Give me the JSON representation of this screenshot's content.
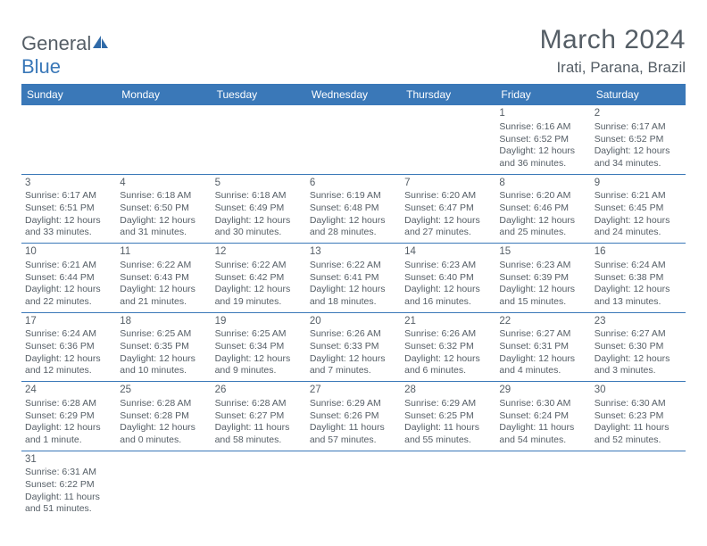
{
  "logo": {
    "text_general": "General",
    "text_blue": "Blue"
  },
  "title": "March 2024",
  "location": "Irati, Parana, Brazil",
  "colors": {
    "accent": "#3a78b8",
    "text": "#555e66",
    "bg": "#ffffff"
  },
  "weekdays": [
    "Sunday",
    "Monday",
    "Tuesday",
    "Wednesday",
    "Thursday",
    "Friday",
    "Saturday"
  ],
  "weeks": [
    [
      null,
      null,
      null,
      null,
      null,
      {
        "d": "1",
        "sr": "Sunrise: 6:16 AM",
        "ss": "Sunset: 6:52 PM",
        "dl1": "Daylight: 12 hours",
        "dl2": "and 36 minutes."
      },
      {
        "d": "2",
        "sr": "Sunrise: 6:17 AM",
        "ss": "Sunset: 6:52 PM",
        "dl1": "Daylight: 12 hours",
        "dl2": "and 34 minutes."
      }
    ],
    [
      {
        "d": "3",
        "sr": "Sunrise: 6:17 AM",
        "ss": "Sunset: 6:51 PM",
        "dl1": "Daylight: 12 hours",
        "dl2": "and 33 minutes."
      },
      {
        "d": "4",
        "sr": "Sunrise: 6:18 AM",
        "ss": "Sunset: 6:50 PM",
        "dl1": "Daylight: 12 hours",
        "dl2": "and 31 minutes."
      },
      {
        "d": "5",
        "sr": "Sunrise: 6:18 AM",
        "ss": "Sunset: 6:49 PM",
        "dl1": "Daylight: 12 hours",
        "dl2": "and 30 minutes."
      },
      {
        "d": "6",
        "sr": "Sunrise: 6:19 AM",
        "ss": "Sunset: 6:48 PM",
        "dl1": "Daylight: 12 hours",
        "dl2": "and 28 minutes."
      },
      {
        "d": "7",
        "sr": "Sunrise: 6:20 AM",
        "ss": "Sunset: 6:47 PM",
        "dl1": "Daylight: 12 hours",
        "dl2": "and 27 minutes."
      },
      {
        "d": "8",
        "sr": "Sunrise: 6:20 AM",
        "ss": "Sunset: 6:46 PM",
        "dl1": "Daylight: 12 hours",
        "dl2": "and 25 minutes."
      },
      {
        "d": "9",
        "sr": "Sunrise: 6:21 AM",
        "ss": "Sunset: 6:45 PM",
        "dl1": "Daylight: 12 hours",
        "dl2": "and 24 minutes."
      }
    ],
    [
      {
        "d": "10",
        "sr": "Sunrise: 6:21 AM",
        "ss": "Sunset: 6:44 PM",
        "dl1": "Daylight: 12 hours",
        "dl2": "and 22 minutes."
      },
      {
        "d": "11",
        "sr": "Sunrise: 6:22 AM",
        "ss": "Sunset: 6:43 PM",
        "dl1": "Daylight: 12 hours",
        "dl2": "and 21 minutes."
      },
      {
        "d": "12",
        "sr": "Sunrise: 6:22 AM",
        "ss": "Sunset: 6:42 PM",
        "dl1": "Daylight: 12 hours",
        "dl2": "and 19 minutes."
      },
      {
        "d": "13",
        "sr": "Sunrise: 6:22 AM",
        "ss": "Sunset: 6:41 PM",
        "dl1": "Daylight: 12 hours",
        "dl2": "and 18 minutes."
      },
      {
        "d": "14",
        "sr": "Sunrise: 6:23 AM",
        "ss": "Sunset: 6:40 PM",
        "dl1": "Daylight: 12 hours",
        "dl2": "and 16 minutes."
      },
      {
        "d": "15",
        "sr": "Sunrise: 6:23 AM",
        "ss": "Sunset: 6:39 PM",
        "dl1": "Daylight: 12 hours",
        "dl2": "and 15 minutes."
      },
      {
        "d": "16",
        "sr": "Sunrise: 6:24 AM",
        "ss": "Sunset: 6:38 PM",
        "dl1": "Daylight: 12 hours",
        "dl2": "and 13 minutes."
      }
    ],
    [
      {
        "d": "17",
        "sr": "Sunrise: 6:24 AM",
        "ss": "Sunset: 6:36 PM",
        "dl1": "Daylight: 12 hours",
        "dl2": "and 12 minutes."
      },
      {
        "d": "18",
        "sr": "Sunrise: 6:25 AM",
        "ss": "Sunset: 6:35 PM",
        "dl1": "Daylight: 12 hours",
        "dl2": "and 10 minutes."
      },
      {
        "d": "19",
        "sr": "Sunrise: 6:25 AM",
        "ss": "Sunset: 6:34 PM",
        "dl1": "Daylight: 12 hours",
        "dl2": "and 9 minutes."
      },
      {
        "d": "20",
        "sr": "Sunrise: 6:26 AM",
        "ss": "Sunset: 6:33 PM",
        "dl1": "Daylight: 12 hours",
        "dl2": "and 7 minutes."
      },
      {
        "d": "21",
        "sr": "Sunrise: 6:26 AM",
        "ss": "Sunset: 6:32 PM",
        "dl1": "Daylight: 12 hours",
        "dl2": "and 6 minutes."
      },
      {
        "d": "22",
        "sr": "Sunrise: 6:27 AM",
        "ss": "Sunset: 6:31 PM",
        "dl1": "Daylight: 12 hours",
        "dl2": "and 4 minutes."
      },
      {
        "d": "23",
        "sr": "Sunrise: 6:27 AM",
        "ss": "Sunset: 6:30 PM",
        "dl1": "Daylight: 12 hours",
        "dl2": "and 3 minutes."
      }
    ],
    [
      {
        "d": "24",
        "sr": "Sunrise: 6:28 AM",
        "ss": "Sunset: 6:29 PM",
        "dl1": "Daylight: 12 hours",
        "dl2": "and 1 minute."
      },
      {
        "d": "25",
        "sr": "Sunrise: 6:28 AM",
        "ss": "Sunset: 6:28 PM",
        "dl1": "Daylight: 12 hours",
        "dl2": "and 0 minutes."
      },
      {
        "d": "26",
        "sr": "Sunrise: 6:28 AM",
        "ss": "Sunset: 6:27 PM",
        "dl1": "Daylight: 11 hours",
        "dl2": "and 58 minutes."
      },
      {
        "d": "27",
        "sr": "Sunrise: 6:29 AM",
        "ss": "Sunset: 6:26 PM",
        "dl1": "Daylight: 11 hours",
        "dl2": "and 57 minutes."
      },
      {
        "d": "28",
        "sr": "Sunrise: 6:29 AM",
        "ss": "Sunset: 6:25 PM",
        "dl1": "Daylight: 11 hours",
        "dl2": "and 55 minutes."
      },
      {
        "d": "29",
        "sr": "Sunrise: 6:30 AM",
        "ss": "Sunset: 6:24 PM",
        "dl1": "Daylight: 11 hours",
        "dl2": "and 54 minutes."
      },
      {
        "d": "30",
        "sr": "Sunrise: 6:30 AM",
        "ss": "Sunset: 6:23 PM",
        "dl1": "Daylight: 11 hours",
        "dl2": "and 52 minutes."
      }
    ],
    [
      {
        "d": "31",
        "sr": "Sunrise: 6:31 AM",
        "ss": "Sunset: 6:22 PM",
        "dl1": "Daylight: 11 hours",
        "dl2": "and 51 minutes."
      },
      null,
      null,
      null,
      null,
      null,
      null
    ]
  ]
}
